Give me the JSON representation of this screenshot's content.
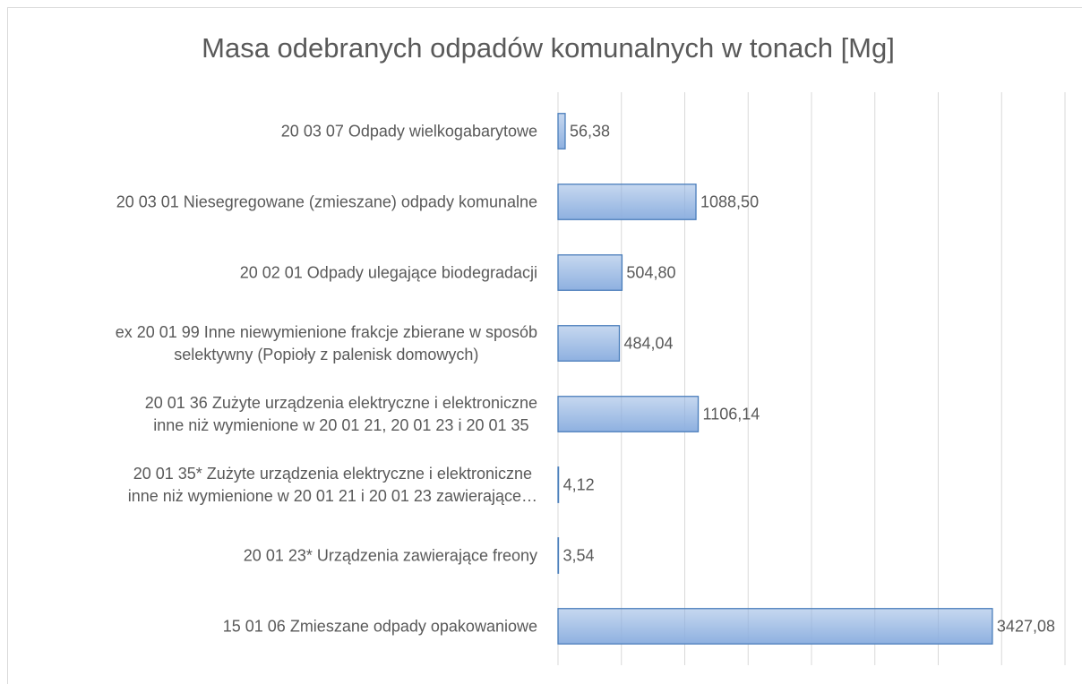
{
  "chart_data": {
    "type": "barh",
    "title": "Masa odebranych odpadów komunalnych w tonach [Mg]",
    "categories": [
      "20 03 07 Odpady wielkogabarytowe",
      "20 03 01 Niesegregowane (zmieszane) odpady komunalne",
      "20 02 01 Odpady ulegające biodegradacji",
      "ex 20 01 99 Inne niewymienione frakcje zbierane w sposób\nselektywny (Popioły z palenisk domowych)",
      "20 01 36 Zużyte urządzenia elektryczne i elektroniczne\ninne niż wymienione w 20 01 21, 20 01 23 i 20 01 35",
      "20 01 35* Zużyte urządzenia elektryczne i elektroniczne\ninne niż wymienione w 20 01 21 i 20 01 23 zawierające…",
      "20 01 23* Urządzenia zawierające freony",
      "15 01 06 Zmieszane odpady opakowaniowe"
    ],
    "values": [
      56.38,
      1088.5,
      504.8,
      484.04,
      1106.14,
      4.12,
      3.54,
      3427.08
    ],
    "value_labels": [
      "56,38",
      "1088,50",
      "504,80",
      "484,04",
      "1106,14",
      "4,12",
      "3,54",
      "3427,08"
    ],
    "color": "#8eb0e0",
    "edge_color": "#4a7ebb",
    "xlim": [
      0,
      4000
    ],
    "xticks": [
      0,
      500,
      1000,
      1500,
      2000,
      2500,
      3000,
      3500,
      4000
    ],
    "grid": true
  }
}
